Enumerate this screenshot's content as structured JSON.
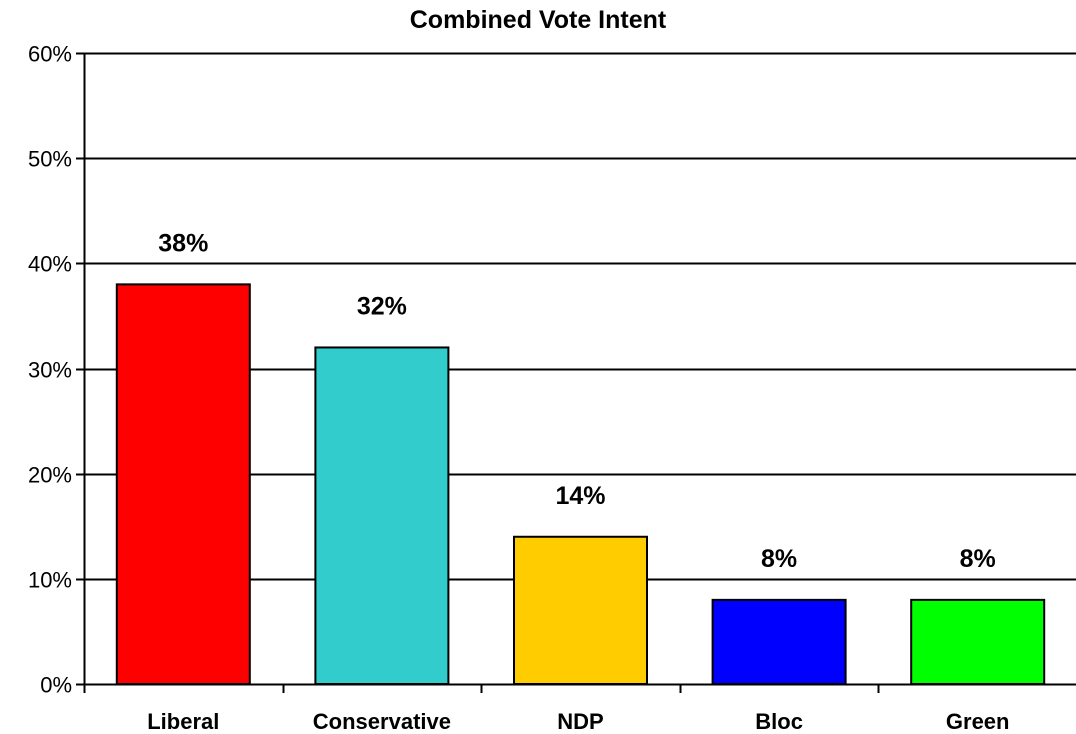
{
  "chart_data": {
    "type": "bar",
    "title": "Combined Vote Intent",
    "xlabel": "",
    "ylabel": "",
    "ylim": [
      0,
      60
    ],
    "y_tick_labels": [
      "0%",
      "10%",
      "20%",
      "30%",
      "40%",
      "50%",
      "60%"
    ],
    "y_tick_values": [
      0,
      10,
      20,
      30,
      40,
      50,
      60
    ],
    "categories": [
      "Liberal",
      "Conservative",
      "NDP",
      "Bloc",
      "Green"
    ],
    "values": [
      38,
      32,
      14,
      8,
      8
    ],
    "data_labels": [
      "38%",
      "32%",
      "14%",
      "8%",
      "8%"
    ],
    "colors": [
      "#ff0000",
      "#33cccc",
      "#ffcc00",
      "#0000ff",
      "#00ff00"
    ],
    "grid": true,
    "legend": "none"
  }
}
